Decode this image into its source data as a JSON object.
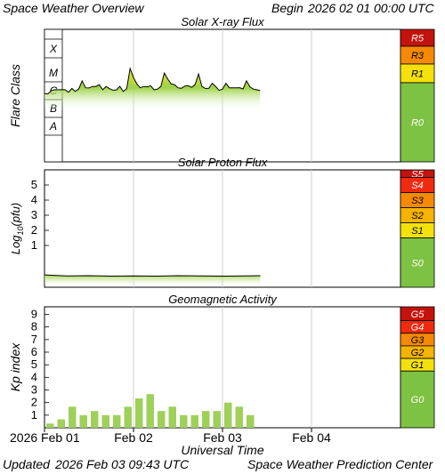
{
  "header": {
    "left": "Space Weather Overview",
    "right_prefix": "Begin",
    "right_value": "2026 02 01 00:00 UTC"
  },
  "footer": {
    "updated_prefix": "Updated",
    "updated_value": "2026 Feb 03 09:43 UTC",
    "credit": "Space Weather Prediction Center"
  },
  "colors": {
    "green": "#7dc242",
    "yellow": "#f5e10a",
    "orange_yellow": "#f6b300",
    "orange": "#f58a00",
    "red": "#ef2a10",
    "dark_red": "#c4120c",
    "xray_fill_green": "#9fd34a",
    "xray_fill_yellow": "#f0e028",
    "kp_bar": "#9ed05a"
  },
  "chart_data": [
    {
      "type": "area",
      "title": "Solar X-ray Flux",
      "ylabel": "Flare Class",
      "class_labels": [
        "X",
        "M",
        "C",
        "B",
        "A"
      ],
      "scale_labels": [
        "R5",
        "R3",
        "R1",
        "R0"
      ],
      "x_range_hours": [
        0,
        72
      ],
      "x": [
        0.0,
        0.92,
        1.85,
        2.77,
        3.69,
        4.62,
        5.54,
        6.46,
        7.38,
        8.31,
        9.23,
        10.15,
        11.08,
        12.0,
        12.92,
        13.85,
        14.77,
        15.69,
        16.62,
        17.54,
        18.46,
        19.38,
        20.31,
        21.23,
        22.15,
        23.08,
        24.0,
        24.92,
        25.85,
        26.77,
        27.69,
        28.62,
        29.54,
        30.46,
        31.38,
        32.31,
        33.23,
        34.15,
        35.08,
        36.0,
        36.92,
        37.85,
        38.77,
        39.69,
        40.62,
        41.54,
        42.46,
        43.38,
        44.31,
        45.23,
        46.15,
        47.08,
        48.0,
        48.92,
        49.85,
        50.77,
        51.69,
        52.62,
        53.54,
        54.46,
        55.38,
        56.31,
        57.23,
        58.15
      ],
      "y_class": [
        "C2.2",
        "C2.1",
        "C3.2",
        "C3.6",
        "C3.6",
        "C3.6",
        "C3.6",
        "C2.6",
        "C4.2",
        "C2.9",
        "C4.0",
        "M1.1",
        "C4.6",
        "C4.5",
        "C5.5",
        "C5.5",
        "C6.9",
        "C3.6",
        "C5.5",
        "C4.1",
        "C3.4",
        "C3.5",
        "C5.5",
        "C2.9",
        "C4.1",
        "M3.6",
        "M1.5",
        "C7.6",
        "C4.6",
        "C5.5",
        "C5.2",
        "C6.0",
        "C3.6",
        "C3.9",
        "C5.5",
        "M2.3",
        "M1.3",
        "C7.6",
        "C6.9",
        "C4.6",
        "C4.3",
        "C5.8",
        "C6.0",
        "C4.9",
        "C6.9",
        "M2.1",
        "C5.5",
        "C4.2",
        "C4.3",
        "C8.3",
        "C5.5",
        "C3.3",
        "C3.9",
        "C8.3",
        "C4.6",
        "C4.6",
        "C4.6",
        "C4.7",
        "C4.0",
        "M1.1",
        "C5.3",
        "C3.9",
        "C3.6",
        "C3.2"
      ]
    },
    {
      "type": "area",
      "title": "Solar Proton Flux",
      "ylabel_main": "Log",
      "ylabel_sub": "10",
      "ylabel_unit": "(pfu)",
      "yticks": [
        "5",
        "4",
        "3",
        "2",
        "1"
      ],
      "scale_labels": [
        "S5",
        "S4",
        "S3",
        "S2",
        "S1",
        "S0"
      ],
      "x_range_hours": [
        0,
        72
      ],
      "x": [
        0,
        6,
        12,
        18,
        24,
        30,
        36,
        42,
        48,
        54,
        58.2
      ],
      "y": [
        -0.95,
        -1.02,
        -1.0,
        -1.03,
        -1.01,
        -1.03,
        -1.0,
        -1.02,
        -1.03,
        -1.02,
        -1.0
      ]
    },
    {
      "type": "bar",
      "title": "Geomagnetic Activity",
      "ylabel": "Kp index",
      "xlabel": "Universal Time",
      "yticks": [
        "9",
        "8",
        "7",
        "6",
        "5",
        "4",
        "3",
        "2",
        "1"
      ],
      "ylim": [
        0,
        9.6
      ],
      "scale_labels": [
        "G5",
        "G4",
        "G3",
        "G2",
        "G1",
        "G0"
      ],
      "xtick_labels": [
        "2026 Feb 01",
        "Feb 02",
        "Feb 03",
        "Feb 04"
      ],
      "bar_width_hours": 3,
      "kp": [
        0.33,
        0.67,
        1.67,
        1.0,
        1.33,
        1.0,
        1.0,
        1.67,
        2.33,
        2.67,
        1.33,
        1.67,
        1.0,
        1.0,
        1.33,
        1.33,
        2.0,
        1.67,
        1.0
      ]
    }
  ]
}
